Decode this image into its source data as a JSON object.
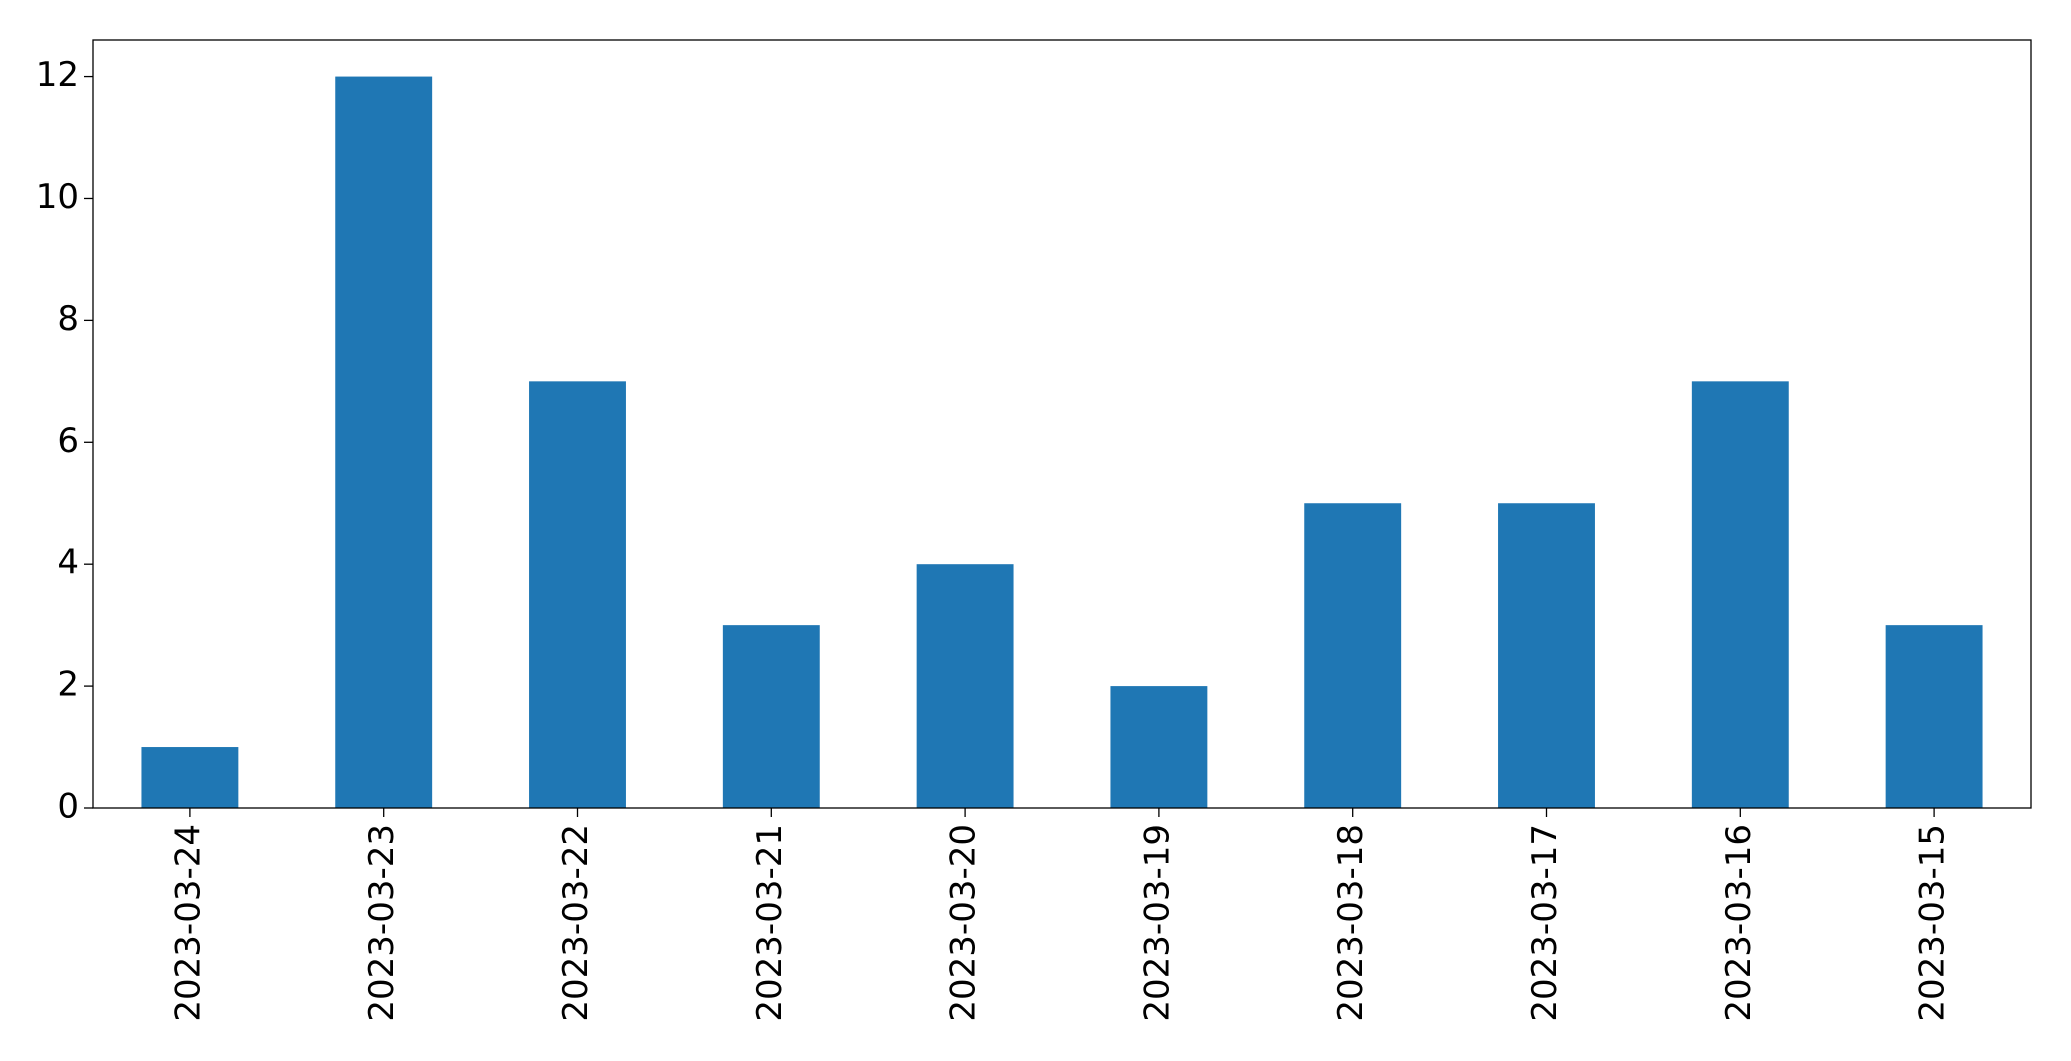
{
  "chart_data": {
    "type": "bar",
    "categories": [
      "2023-03-24",
      "2023-03-23",
      "2023-03-22",
      "2023-03-21",
      "2023-03-20",
      "2023-03-19",
      "2023-03-18",
      "2023-03-17",
      "2023-03-16",
      "2023-03-15"
    ],
    "values": [
      1,
      12,
      7,
      3,
      4,
      2,
      5,
      5,
      7,
      3
    ],
    "color": "#1f77b4",
    "ylim": [
      0,
      12.6
    ],
    "yticks": [
      0,
      2,
      4,
      6,
      8,
      10,
      12
    ],
    "grid": false
  }
}
